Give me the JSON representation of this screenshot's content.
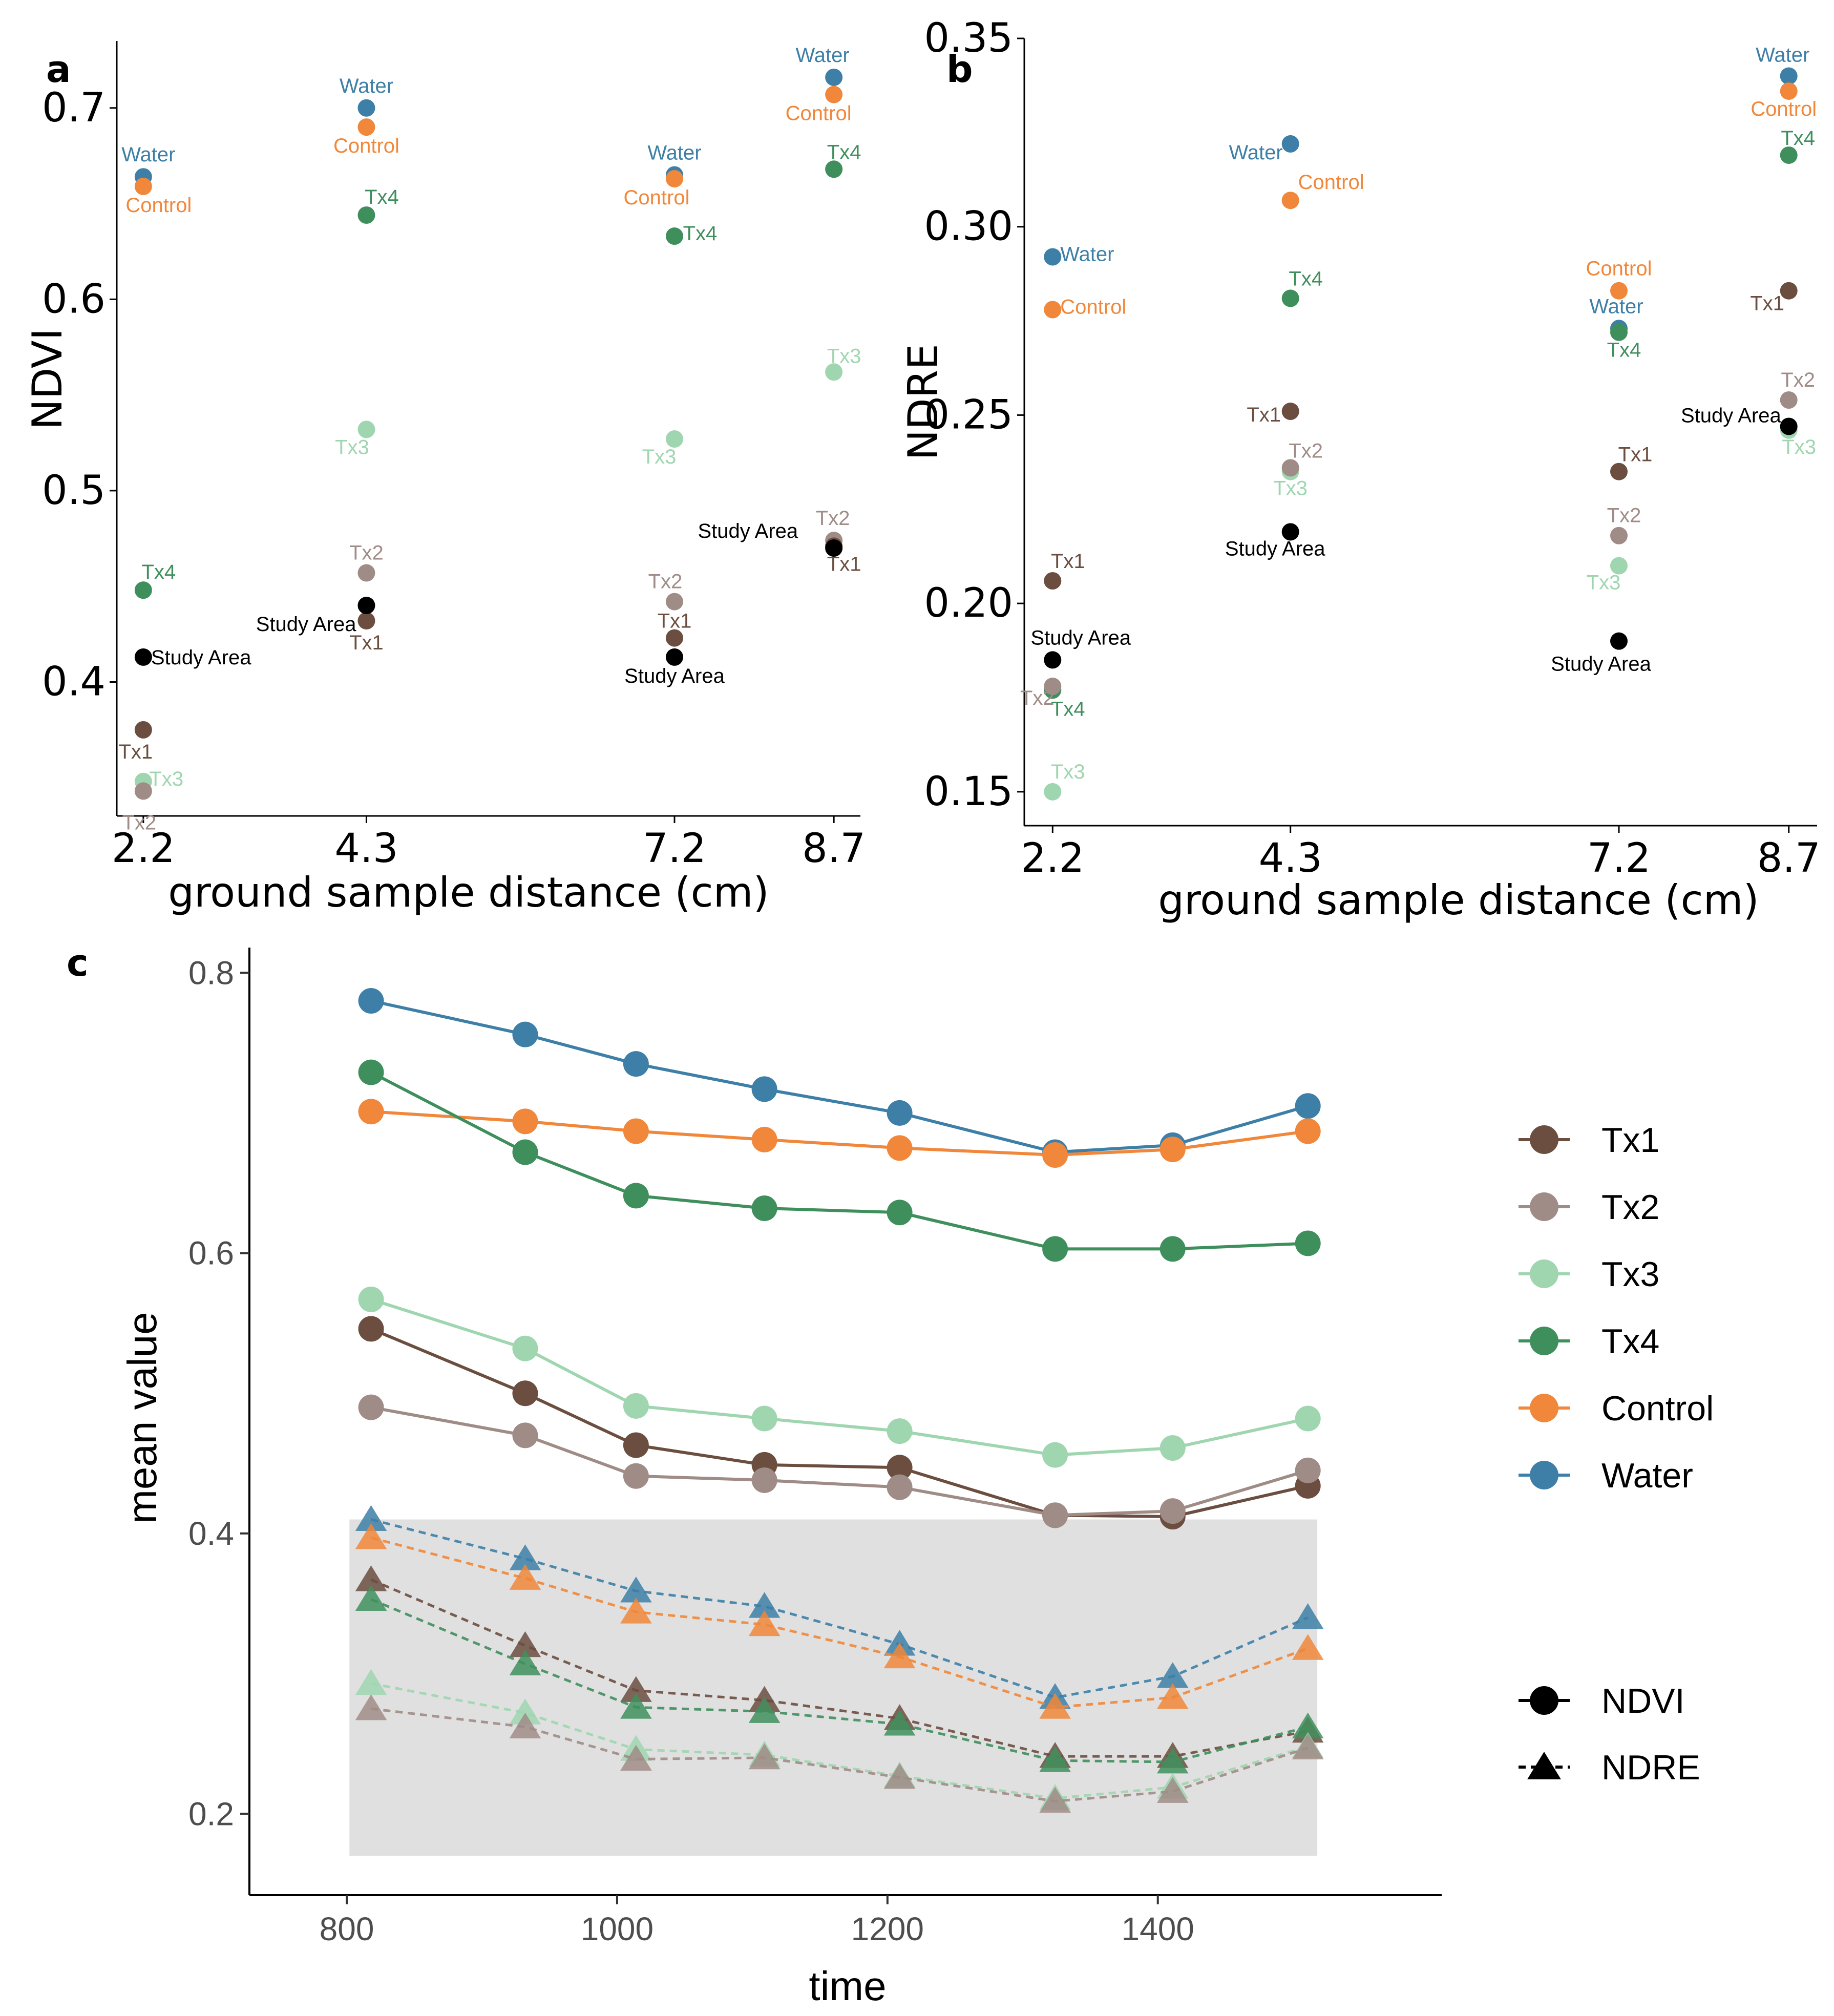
{
  "colors": {
    "Tx1": "#6b4e3f",
    "Tx2": "#a08c86",
    "Tx3": "#9fd6b0",
    "Tx4": "#3f8f5d",
    "Control": "#f0873a",
    "Water": "#3d7fa6",
    "Study Area": "#000000",
    "shade": "#e0e0e0"
  },
  "chart_data": [
    {
      "panel": "a",
      "type": "scatter",
      "xlabel": "ground sample distance (cm)",
      "ylabel": "NDVI",
      "x_ticks": [
        "2.2",
        "4.3",
        "7.2",
        "8.7"
      ],
      "y_ticks": [
        "0.4",
        "0.5",
        "0.6",
        "0.7"
      ],
      "xlim": [
        1.95,
        8.95
      ],
      "ylim": [
        0.33,
        0.735
      ],
      "series": [
        {
          "name": "Water",
          "x": [
            2.2,
            4.3,
            7.2,
            8.7
          ],
          "y": [
            0.664,
            0.7,
            0.665,
            0.716
          ]
        },
        {
          "name": "Control",
          "x": [
            2.2,
            4.3,
            7.2,
            8.7
          ],
          "y": [
            0.659,
            0.69,
            0.663,
            0.707
          ]
        },
        {
          "name": "Tx4",
          "x": [
            2.2,
            4.3,
            7.2,
            8.7
          ],
          "y": [
            0.448,
            0.644,
            0.633,
            0.668
          ]
        },
        {
          "name": "Tx3",
          "x": [
            2.2,
            4.3,
            7.2,
            8.7
          ],
          "y": [
            0.348,
            0.532,
            0.527,
            0.562
          ]
        },
        {
          "name": "Tx2",
          "x": [
            2.2,
            4.3,
            7.2,
            8.7
          ],
          "y": [
            0.343,
            0.457,
            0.442,
            0.474
          ]
        },
        {
          "name": "Tx1",
          "x": [
            2.2,
            4.3,
            7.2,
            8.7
          ],
          "y": [
            0.375,
            0.432,
            0.423,
            0.471
          ]
        },
        {
          "name": "Study Area",
          "x": [
            2.2,
            4.3,
            7.2,
            8.7
          ],
          "y": [
            0.413,
            0.44,
            0.413,
            0.47
          ]
        }
      ]
    },
    {
      "panel": "b",
      "type": "scatter",
      "xlabel": "ground sample distance (cm)",
      "ylabel": "NDRE",
      "x_ticks": [
        "2.2",
        "4.3",
        "7.2",
        "8.7"
      ],
      "y_ticks": [
        "0.15",
        "0.20",
        "0.25",
        "0.30",
        "0.35"
      ],
      "xlim": [
        1.95,
        8.95
      ],
      "ylim": [
        0.141,
        0.35
      ],
      "series": [
        {
          "name": "Water",
          "x": [
            2.2,
            4.3,
            7.2,
            8.7
          ],
          "y": [
            0.292,
            0.322,
            0.273,
            0.34
          ]
        },
        {
          "name": "Control",
          "x": [
            2.2,
            4.3,
            7.2,
            8.7
          ],
          "y": [
            0.278,
            0.307,
            0.283,
            0.336
          ]
        },
        {
          "name": "Tx4",
          "x": [
            2.2,
            4.3,
            7.2,
            8.7
          ],
          "y": [
            0.177,
            0.281,
            0.272,
            0.319
          ]
        },
        {
          "name": "Tx3",
          "x": [
            2.2,
            4.3,
            7.2,
            8.7
          ],
          "y": [
            0.15,
            0.235,
            0.21,
            0.246
          ]
        },
        {
          "name": "Tx2",
          "x": [
            2.2,
            4.3,
            7.2,
            8.7
          ],
          "y": [
            0.178,
            0.236,
            0.218,
            0.254
          ]
        },
        {
          "name": "Tx1",
          "x": [
            2.2,
            4.3,
            7.2,
            8.7
          ],
          "y": [
            0.206,
            0.251,
            0.235,
            0.283
          ]
        },
        {
          "name": "Study Area",
          "x": [
            2.2,
            4.3,
            7.2,
            8.7
          ],
          "y": [
            0.185,
            0.219,
            0.19,
            0.247
          ]
        }
      ]
    },
    {
      "panel": "c",
      "type": "line",
      "xlabel": "time",
      "ylabel": "mean value",
      "x_ticks": [
        "800",
        "1000",
        "1200",
        "1400"
      ],
      "y_ticks": [
        "0.2",
        "0.4",
        "0.6",
        "0.8"
      ],
      "xlim": [
        728,
        1610
      ],
      "ylim": [
        0.142,
        0.818
      ],
      "x": [
        818,
        932,
        1014,
        1109,
        1209,
        1324,
        1411,
        1511
      ],
      "shaded_region": {
        "x": [
          802,
          1518
        ],
        "y": [
          0.17,
          0.41
        ]
      },
      "series": [
        {
          "name": "Water",
          "index": "NDVI",
          "values": [
            0.78,
            0.756,
            0.735,
            0.717,
            0.7,
            0.672,
            0.677,
            0.705
          ]
        },
        {
          "name": "Control",
          "index": "NDVI",
          "values": [
            0.701,
            0.694,
            0.687,
            0.681,
            0.675,
            0.67,
            0.674,
            0.687
          ]
        },
        {
          "name": "Tx4",
          "index": "NDVI",
          "values": [
            0.729,
            0.672,
            0.641,
            0.632,
            0.629,
            0.603,
            0.603,
            0.607
          ]
        },
        {
          "name": "Tx3",
          "index": "NDVI",
          "values": [
            0.567,
            0.532,
            0.491,
            0.482,
            0.473,
            0.456,
            0.461,
            0.482
          ]
        },
        {
          "name": "Tx1",
          "index": "NDVI",
          "values": [
            0.546,
            0.5,
            0.463,
            0.449,
            0.447,
            0.413,
            0.412,
            0.434
          ]
        },
        {
          "name": "Tx2",
          "index": "NDVI",
          "values": [
            0.49,
            0.47,
            0.441,
            0.438,
            0.433,
            0.413,
            0.416,
            0.445
          ]
        },
        {
          "name": "Water",
          "index": "NDRE",
          "values": [
            0.41,
            0.382,
            0.359,
            0.348,
            0.321,
            0.283,
            0.298,
            0.34
          ]
        },
        {
          "name": "Control",
          "index": "NDRE",
          "values": [
            0.397,
            0.368,
            0.344,
            0.335,
            0.312,
            0.276,
            0.283,
            0.318
          ]
        },
        {
          "name": "Tx1",
          "index": "NDRE",
          "values": [
            0.367,
            0.32,
            0.288,
            0.281,
            0.268,
            0.241,
            0.241,
            0.259
          ]
        },
        {
          "name": "Tx4",
          "index": "NDRE",
          "values": [
            0.353,
            0.307,
            0.276,
            0.273,
            0.264,
            0.238,
            0.237,
            0.262
          ]
        },
        {
          "name": "Tx3",
          "index": "NDRE",
          "values": [
            0.293,
            0.272,
            0.246,
            0.242,
            0.227,
            0.211,
            0.219,
            0.248
          ]
        },
        {
          "name": "Tx2",
          "index": "NDRE",
          "values": [
            0.275,
            0.262,
            0.239,
            0.24,
            0.226,
            0.209,
            0.216,
            0.247
          ]
        }
      ],
      "legend": {
        "groups": [
          "Tx1",
          "Tx2",
          "Tx3",
          "Tx4",
          "Control",
          "Water"
        ],
        "indices": [
          "NDVI",
          "NDRE"
        ]
      }
    }
  ]
}
